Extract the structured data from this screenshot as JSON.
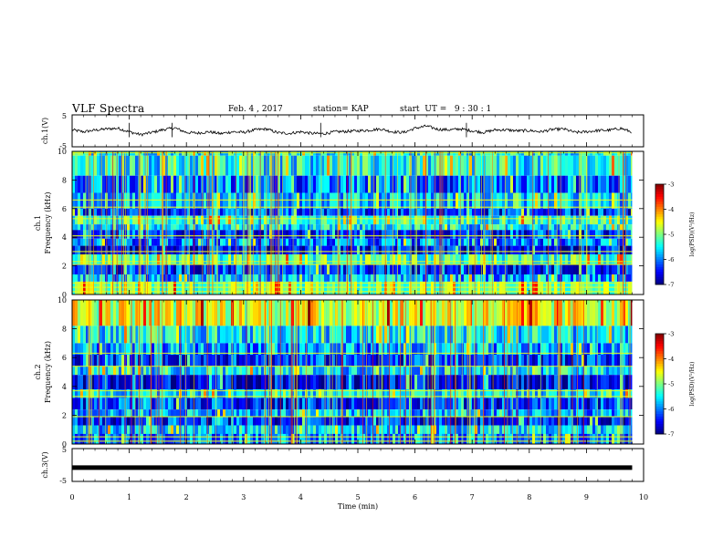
{
  "header": {
    "title": "VLF Spectra",
    "date": "Feb. 4 , 2017",
    "station": "station= KAP",
    "start": "start  UT =   9 : 30 : 1"
  },
  "chart_data": [
    {
      "type": "line",
      "panel": "ch1-waveform",
      "ylabel": "ch.1(V)",
      "ylim": [
        -5,
        5
      ],
      "yticks": [
        "5",
        "-5"
      ],
      "xlim": [
        0,
        10
      ],
      "series": [
        {
          "x": [
            0,
            0.2,
            0.4,
            0.6,
            0.8,
            1.0,
            1.2,
            1.4,
            1.6,
            1.8,
            2.0,
            2.2,
            2.4,
            2.6,
            2.8,
            3.0,
            3.2,
            3.4,
            3.6,
            3.8,
            4.0,
            4.2,
            4.4,
            4.6,
            4.8,
            5.0,
            5.2,
            5.4,
            5.6,
            5.8,
            6.0,
            6.2,
            6.4,
            6.6,
            6.8,
            7.0,
            7.2,
            7.4,
            7.6,
            7.8,
            8.0,
            8.2,
            8.4,
            8.6,
            8.8,
            9.0,
            9.2,
            9.4,
            9.6,
            9.8
          ],
          "values": [
            0.3,
            -0.3,
            0.2,
            0.6,
            0.8,
            -0.3,
            -1.2,
            -0.5,
            0.4,
            0.9,
            -0.5,
            -0.7,
            -0.3,
            -0.9,
            -0.3,
            -0.5,
            0.3,
            0.6,
            -0.6,
            -0.8,
            -0.3,
            -0.8,
            -0.9,
            -0.3,
            -0.2,
            0.0,
            0.2,
            0.6,
            -0.3,
            -0.5,
            0.8,
            1.5,
            0.5,
            0.3,
            0.6,
            0.0,
            -0.5,
            0.3,
            0.3,
            0.0,
            0.1,
            -0.3,
            0.4,
            0.6,
            -0.5,
            -0.3,
            0.1,
            0.2,
            0.8,
            -0.4
          ]
        }
      ]
    },
    {
      "type": "heatmap",
      "panel": "ch1-spectrogram",
      "ylabel": "ch.1",
      "ylabel2": "Frequency (kHz)",
      "ylim": [
        0,
        10
      ],
      "yticks": [
        "0",
        "2",
        "4",
        "6",
        "8",
        "10"
      ],
      "xlim": [
        0,
        10
      ],
      "bands_khz": [
        {
          "from": 9.7,
          "to": 10.0,
          "level": -5.4
        },
        {
          "from": 8.3,
          "to": 9.7,
          "level": -5.5
        },
        {
          "from": 7.1,
          "to": 8.3,
          "level": -6.1
        },
        {
          "from": 6.0,
          "to": 7.1,
          "level": -5.7
        },
        {
          "from": 5.5,
          "to": 6.0,
          "level": -6.3
        },
        {
          "from": 4.9,
          "to": 5.5,
          "level": -5.3
        },
        {
          "from": 4.5,
          "to": 4.9,
          "level": -5.6
        },
        {
          "from": 3.9,
          "to": 4.5,
          "level": -6.3
        },
        {
          "from": 3.4,
          "to": 3.9,
          "level": -6.0
        },
        {
          "from": 2.8,
          "to": 3.4,
          "level": -6.5
        },
        {
          "from": 2.1,
          "to": 2.8,
          "level": -5.2
        },
        {
          "from": 1.4,
          "to": 2.1,
          "level": -6.3
        },
        {
          "from": 0.9,
          "to": 1.4,
          "level": -5.8
        },
        {
          "from": 0.0,
          "to": 0.9,
          "level": -5.0
        }
      ],
      "lines_khz": [
        9.9,
        6.6,
        6.1,
        5.3,
        4.1,
        3.0,
        2.3,
        2.1,
        0.8,
        0.5,
        0.2
      ]
    },
    {
      "type": "heatmap",
      "panel": "ch2-spectrogram",
      "ylabel": "ch.2",
      "ylabel2": "Frequency (kHz)",
      "ylim": [
        0,
        10
      ],
      "yticks": [
        "0",
        "2",
        "4",
        "6",
        "8",
        "10"
      ],
      "xlim": [
        0,
        10
      ],
      "bands_khz": [
        {
          "from": 8.2,
          "to": 10.0,
          "level": -4.6
        },
        {
          "from": 7.0,
          "to": 8.2,
          "level": -5.6
        },
        {
          "from": 6.2,
          "to": 7.0,
          "level": -5.9
        },
        {
          "from": 5.4,
          "to": 6.2,
          "level": -6.3
        },
        {
          "from": 4.8,
          "to": 5.4,
          "level": -5.6
        },
        {
          "from": 3.8,
          "to": 4.8,
          "level": -6.6
        },
        {
          "from": 3.2,
          "to": 3.8,
          "level": -5.5
        },
        {
          "from": 2.4,
          "to": 3.2,
          "level": -6.3
        },
        {
          "from": 1.9,
          "to": 2.4,
          "level": -5.8
        },
        {
          "from": 1.3,
          "to": 1.9,
          "level": -6.4
        },
        {
          "from": 0.7,
          "to": 1.3,
          "level": -5.7
        },
        {
          "from": 0.0,
          "to": 0.7,
          "level": -6.0
        }
      ],
      "lines_khz": [
        6.3,
        5.4,
        3.7,
        3.3,
        1.9,
        0.5,
        0.2
      ]
    },
    {
      "type": "line",
      "panel": "ch3-waveform",
      "ylabel": "ch.3(V)",
      "ylim": [
        -5,
        5
      ],
      "yticks": [
        "5",
        "-5"
      ],
      "xlim": [
        0,
        10
      ],
      "series": [
        {
          "x": [
            0,
            9.8
          ],
          "values": [
            -0.8,
            -0.8
          ]
        }
      ]
    }
  ],
  "xaxis": {
    "label": "Time (min)",
    "ticks": [
      "0",
      "1",
      "2",
      "3",
      "4",
      "5",
      "6",
      "7",
      "8",
      "9",
      "10"
    ]
  },
  "colorbars": [
    {
      "label": "log(PSD)(V²/Hz)",
      "ticks": [
        "-3",
        "-4",
        "-5",
        "-6",
        "-7"
      ],
      "range": [
        -7,
        -3
      ]
    },
    {
      "label": "log(PSD)(V²/Hz)",
      "ticks": [
        "-3",
        "-4",
        "-5",
        "-6",
        "-7"
      ],
      "range": [
        -7,
        -3
      ]
    }
  ]
}
